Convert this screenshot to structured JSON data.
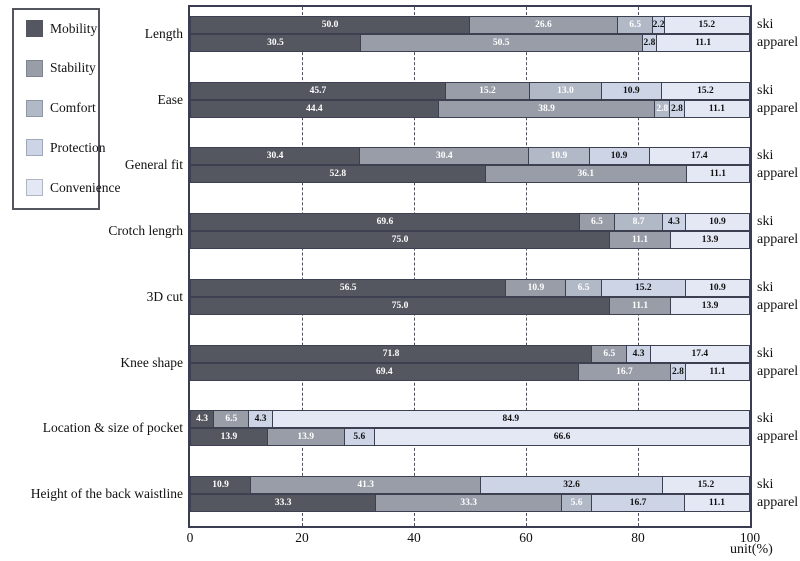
{
  "legend": {
    "items": [
      {
        "label": "Mobility",
        "color": "#54575f"
      },
      {
        "label": "Stability",
        "color": "#989da8"
      },
      {
        "label": "Comfort",
        "color": "#b1b8c6"
      },
      {
        "label": "Protection",
        "color": "#ccd4e6"
      },
      {
        "label": "Convenience",
        "color": "#e4e8f4"
      }
    ]
  },
  "axis": {
    "ticks": [
      "0",
      "20",
      "40",
      "60",
      "80",
      "100"
    ],
    "gridlines_percent": [
      20,
      40,
      60,
      80
    ],
    "unit_label": "unit(%)"
  },
  "colors": {
    "plot_border": "#3b3e52",
    "segment_border": "#3d4050",
    "grid": "#4e515b",
    "label_on_dark": "#ffffff",
    "label_on_light": "#111111",
    "series_colors": {
      "Mobility": "#54575f",
      "Stability": "#989da8",
      "Comfort": "#b1b8c6",
      "Protection": "#ccd4e6",
      "Convenience": "#e4e8f4"
    },
    "white_text_series": [
      "Mobility",
      "Stability",
      "Comfort"
    ]
  },
  "chart_data": {
    "type": "bar",
    "orientation": "horizontal",
    "stacked": true,
    "title": "",
    "xlabel": "unit(%)",
    "xlim": [
      0,
      100
    ],
    "grid": "dashed-vertical",
    "legend_position": "top-left",
    "series_names": [
      "Mobility",
      "Stability",
      "Comfort",
      "Protection",
      "Convenience"
    ],
    "rows_per_category": [
      "ski",
      "apparel"
    ],
    "categories": [
      "Length",
      "Ease",
      "General fit",
      "Crotch lengrh",
      "3D cut",
      "Knee shape",
      "Location & size of pocket",
      "Height of the back waistline"
    ],
    "groups": [
      {
        "category": "Length",
        "bars": [
          {
            "row": "ski",
            "segments": [
              {
                "series": "Mobility",
                "value": 50.0,
                "label": "50.0"
              },
              {
                "series": "Stability",
                "value": 26.6,
                "label": "26.6"
              },
              {
                "series": "Comfort",
                "value": 6.5,
                "label": "6.5"
              },
              {
                "series": "Protection",
                "value": 2.2,
                "label": "2.2"
              },
              {
                "series": "Convenience",
                "value": 15.2,
                "label": "15.2"
              }
            ]
          },
          {
            "row": "apparel",
            "segments": [
              {
                "series": "Mobility",
                "value": 30.5,
                "label": "30.5"
              },
              {
                "series": "Stability",
                "value": 50.5,
                "label": "50.5"
              },
              {
                "series": "Protection",
                "value": 2.8,
                "label": "2.8"
              },
              {
                "series": "Convenience",
                "value": 11.1,
                "label": "11.1"
              }
            ]
          }
        ]
      },
      {
        "category": "Ease",
        "bars": [
          {
            "row": "ski",
            "segments": [
              {
                "series": "Mobility",
                "value": 45.7,
                "label": "45.7"
              },
              {
                "series": "Stability",
                "value": 15.2,
                "label": "15.2"
              },
              {
                "series": "Comfort",
                "value": 13.0,
                "label": "13.0"
              },
              {
                "series": "Protection",
                "value": 10.9,
                "label": "10.9"
              },
              {
                "series": "Convenience",
                "value": 15.2,
                "label": "15.2"
              }
            ]
          },
          {
            "row": "apparel",
            "segments": [
              {
                "series": "Mobility",
                "value": 44.4,
                "label": "44.4"
              },
              {
                "series": "Stability",
                "value": 38.9,
                "label": "38.9"
              },
              {
                "series": "Comfort",
                "value": 2.8,
                "label": "2.8"
              },
              {
                "series": "Protection",
                "value": 2.8,
                "label": "2.8"
              },
              {
                "series": "Convenience",
                "value": 11.1,
                "label": "11.1"
              }
            ]
          }
        ]
      },
      {
        "category": "General fit",
        "bars": [
          {
            "row": "ski",
            "segments": [
              {
                "series": "Mobility",
                "value": 30.4,
                "label": "30.4"
              },
              {
                "series": "Stability",
                "value": 30.4,
                "label": "30.4"
              },
              {
                "series": "Comfort",
                "value": 10.9,
                "label": "10.9"
              },
              {
                "series": "Protection",
                "value": 10.9,
                "label": "10.9"
              },
              {
                "series": "Convenience",
                "value": 17.4,
                "label": "17.4"
              }
            ]
          },
          {
            "row": "apparel",
            "segments": [
              {
                "series": "Mobility",
                "value": 52.8,
                "label": "52.8"
              },
              {
                "series": "Stability",
                "value": 36.1,
                "label": "36.1"
              },
              {
                "series": "Convenience",
                "value": 11.1,
                "label": "11.1"
              }
            ]
          }
        ]
      },
      {
        "category": "Crotch lengrh",
        "bars": [
          {
            "row": "ski",
            "segments": [
              {
                "series": "Mobility",
                "value": 69.6,
                "label": "69.6"
              },
              {
                "series": "Stability",
                "value": 6.5,
                "label": "6.5"
              },
              {
                "series": "Comfort",
                "value": 8.7,
                "label": "8.7"
              },
              {
                "series": "Protection",
                "value": 4.3,
                "label": "4.3"
              },
              {
                "series": "Convenience",
                "value": 10.9,
                "label": "10.9"
              }
            ]
          },
          {
            "row": "apparel",
            "segments": [
              {
                "series": "Mobility",
                "value": 75.0,
                "label": "75.0"
              },
              {
                "series": "Stability",
                "value": 11.1,
                "label": "11.1"
              },
              {
                "series": "Convenience",
                "value": 13.9,
                "label": "13.9"
              }
            ]
          }
        ]
      },
      {
        "category": "3D cut",
        "bars": [
          {
            "row": "ski",
            "segments": [
              {
                "series": "Mobility",
                "value": 56.5,
                "label": "56.5"
              },
              {
                "series": "Stability",
                "value": 10.9,
                "label": "10.9"
              },
              {
                "series": "Comfort",
                "value": 6.5,
                "label": "6.5"
              },
              {
                "series": "Protection",
                "value": 15.2,
                "label": "15.2"
              },
              {
                "series": "Convenience",
                "value": 10.9,
                "label": "10.9"
              }
            ]
          },
          {
            "row": "apparel",
            "segments": [
              {
                "series": "Mobility",
                "value": 75.0,
                "label": "75.0"
              },
              {
                "series": "Stability",
                "value": 11.1,
                "label": "11.1"
              },
              {
                "series": "Convenience",
                "value": 13.9,
                "label": "13.9"
              }
            ]
          }
        ]
      },
      {
        "category": "Knee shape",
        "bars": [
          {
            "row": "ski",
            "segments": [
              {
                "series": "Mobility",
                "value": 71.8,
                "label": "71.8"
              },
              {
                "series": "Stability",
                "value": 6.5,
                "label": "6.5"
              },
              {
                "series": "Protection",
                "value": 4.3,
                "label": "4.3"
              },
              {
                "series": "Convenience",
                "value": 17.4,
                "label": "17.4"
              }
            ]
          },
          {
            "row": "apparel",
            "segments": [
              {
                "series": "Mobility",
                "value": 69.4,
                "label": "69.4"
              },
              {
                "series": "Stability",
                "value": 16.7,
                "label": "16.7"
              },
              {
                "series": "Protection",
                "value": 2.8,
                "label": "2.8"
              },
              {
                "series": "Convenience",
                "value": 11.1,
                "label": "11.1"
              }
            ]
          }
        ]
      },
      {
        "category": "Location & size of pocket",
        "bars": [
          {
            "row": "ski",
            "segments": [
              {
                "series": "Mobility",
                "value": 4.3,
                "label": "4.3"
              },
              {
                "series": "Stability",
                "value": 6.5,
                "label": "6.5"
              },
              {
                "series": "Protection",
                "value": 4.3,
                "label": "4.3"
              },
              {
                "series": "Convenience",
                "value": 84.9,
                "label": "84.9"
              }
            ]
          },
          {
            "row": "apparel",
            "segments": [
              {
                "series": "Mobility",
                "value": 13.9,
                "label": "13.9"
              },
              {
                "series": "Stability",
                "value": 13.9,
                "label": "13.9"
              },
              {
                "series": "Protection",
                "value": 5.6,
                "label": "5.6"
              },
              {
                "series": "Convenience",
                "value": 66.6,
                "label": "66.6"
              }
            ]
          }
        ]
      },
      {
        "category": "Height of the back waistline",
        "bars": [
          {
            "row": "ski",
            "segments": [
              {
                "series": "Mobility",
                "value": 10.9,
                "label": "10.9"
              },
              {
                "series": "Stability",
                "value": 41.3,
                "label": "41.3"
              },
              {
                "series": "Protection",
                "value": 32.6,
                "label": "32.6"
              },
              {
                "series": "Convenience",
                "value": 15.2,
                "label": "15.2"
              }
            ]
          },
          {
            "row": "apparel",
            "segments": [
              {
                "series": "Mobility",
                "value": 33.3,
                "label": "33.3"
              },
              {
                "series": "Stability",
                "value": 33.3,
                "label": "33.3"
              },
              {
                "series": "Comfort",
                "value": 5.6,
                "label": "5.6"
              },
              {
                "series": "Protection",
                "value": 16.7,
                "label": "16.7"
              },
              {
                "series": "Convenience",
                "value": 11.1,
                "label": "11.1"
              }
            ]
          }
        ]
      }
    ]
  }
}
